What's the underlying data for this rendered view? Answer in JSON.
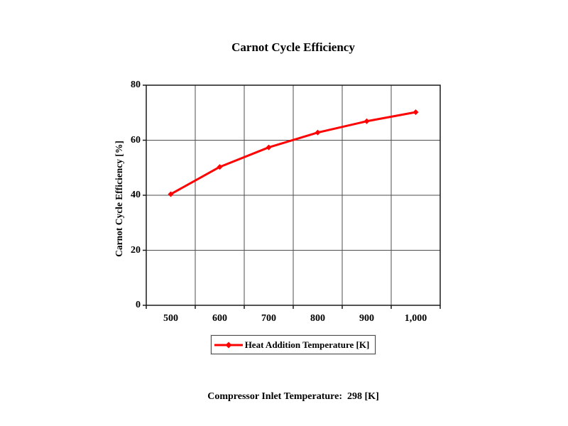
{
  "chart": {
    "series_color": "#ff0000",
    "gridline_color": "#4d4d4d",
    "border_color": "#1a1a1a",
    "background_color": "#ffffff",
    "legend_label": "Heat Addition Temperature [K]"
  },
  "chart_data": {
    "type": "line",
    "title": "Carnot Cycle Efficiency",
    "xlabel": "Heat Addition Temperature [K]",
    "ylabel": "Carnot Cycle Efficiency [%]",
    "categories": [
      "500",
      "600",
      "700",
      "800",
      "900",
      "1,000"
    ],
    "x": [
      500,
      600,
      700,
      800,
      900,
      1000
    ],
    "series": [
      {
        "name": "Heat Addition Temperature [K]",
        "values": [
          40.4,
          50.3,
          57.4,
          62.8,
          66.9,
          70.2
        ]
      }
    ],
    "yticks": [
      0,
      20,
      40,
      60,
      80
    ],
    "ylim": [
      0,
      80
    ],
    "grid": true,
    "marker": "diamond",
    "legend_position": "bottom",
    "annotation": "Compressor Inlet Temperature:  298 [K]"
  }
}
